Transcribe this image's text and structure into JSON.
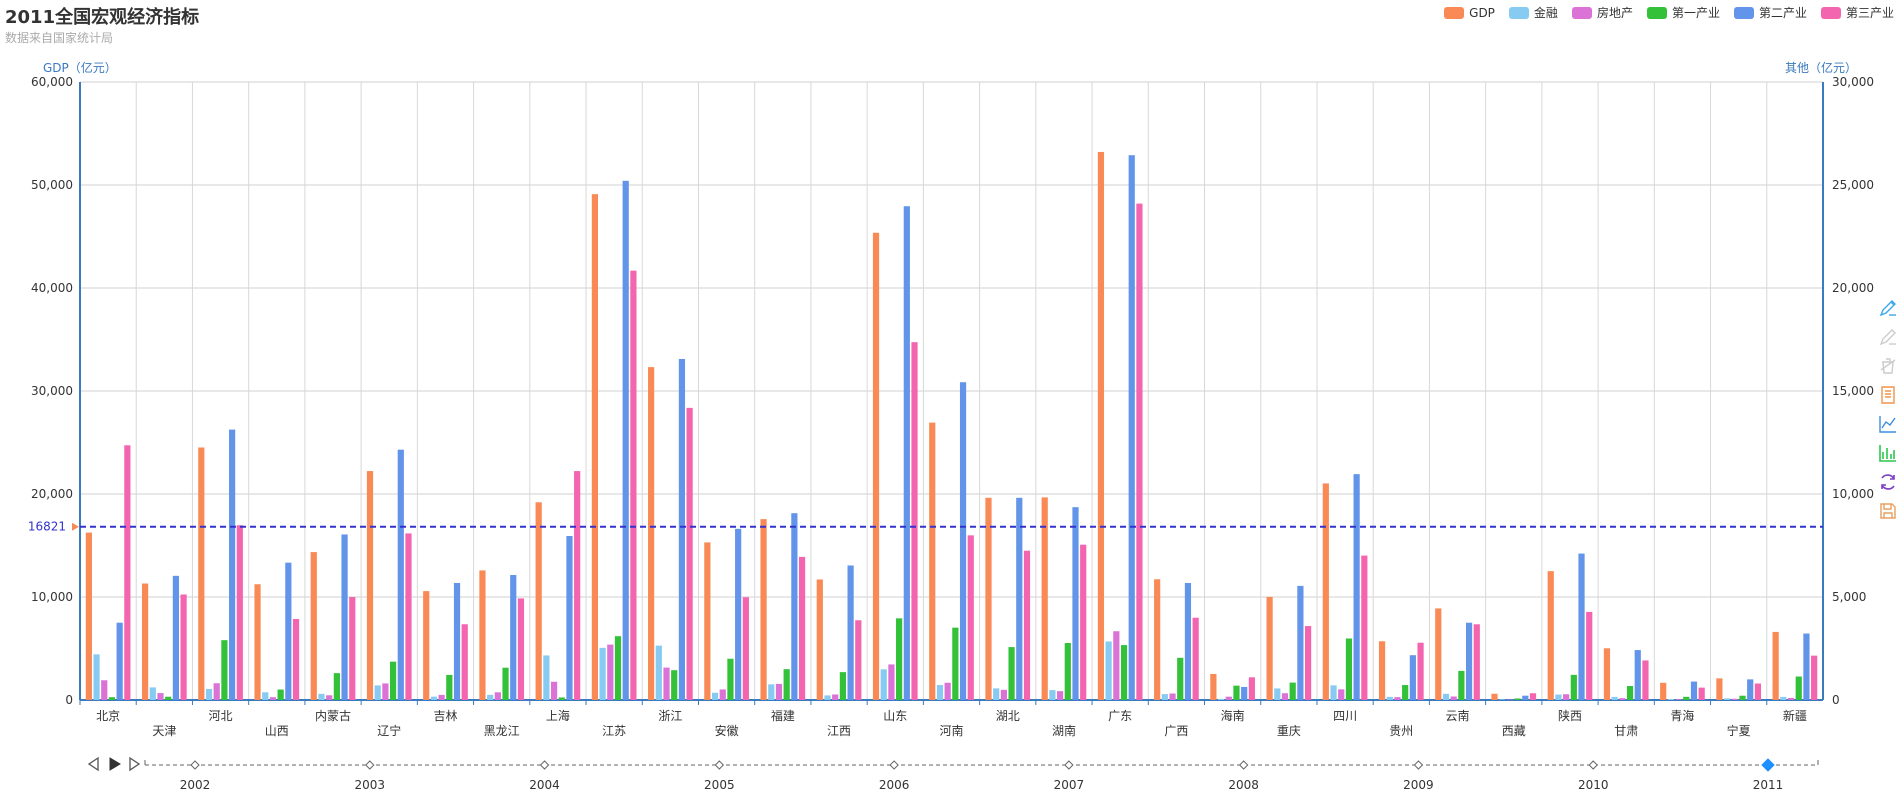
{
  "header": {
    "title": "2011全国宏观经济指标",
    "subtitle": "数据来自国家统计局"
  },
  "legend": [
    {
      "name": "GDP",
      "color": "#f98a55"
    },
    {
      "name": "金融",
      "color": "#88cbf2"
    },
    {
      "name": "房地产",
      "color": "#db73d6"
    },
    {
      "name": "第一产业",
      "color": "#33c13a"
    },
    {
      "name": "第二产业",
      "color": "#6295ea"
    },
    {
      "name": "第三产业",
      "color": "#f465b0"
    }
  ],
  "toolbox": [
    {
      "name": "mark-icon",
      "color": "#3ba8e8"
    },
    {
      "name": "mark-undo-icon",
      "color": "#cccccc"
    },
    {
      "name": "mark-clear-icon",
      "color": "#cccccc"
    },
    {
      "name": "data-view-icon",
      "color": "#f0934a"
    },
    {
      "name": "line-chart-icon",
      "color": "#3b8fe0"
    },
    {
      "name": "bar-chart-icon",
      "color": "#2cc64c"
    },
    {
      "name": "restore-icon",
      "color": "#7b3fc4"
    },
    {
      "name": "save-image-icon",
      "color": "#e8a060"
    }
  ],
  "chart_data": {
    "type": "bar",
    "categories": [
      "北京",
      "天津",
      "河北",
      "山西",
      "内蒙古",
      "辽宁",
      "吉林",
      "黑龙江",
      "上海",
      "江苏",
      "浙江",
      "安徽",
      "福建",
      "江西",
      "山东",
      "河南",
      "湖北",
      "湖南",
      "广东",
      "广西",
      "海南",
      "重庆",
      "四川",
      "贵州",
      "云南",
      "西藏",
      "陕西",
      "甘肃",
      "青海",
      "宁夏",
      "新疆"
    ],
    "left_axis": {
      "label": "GDP（亿元）",
      "min": 0,
      "max": 60000,
      "ticks": [
        0,
        10000,
        20000,
        30000,
        40000,
        50000,
        60000
      ],
      "tick_labels": [
        "0",
        "10,000",
        "20,000",
        "30,000",
        "40,000",
        "50,000",
        "60,000"
      ]
    },
    "right_axis": {
      "label": "其他（亿元）",
      "min": 0,
      "max": 30000,
      "ticks": [
        0,
        5000,
        10000,
        15000,
        20000,
        25000,
        30000
      ],
      "tick_labels": [
        "0",
        "5,000",
        "10,000",
        "15,000",
        "20,000",
        "25,000",
        "30,000"
      ]
    },
    "grid": true,
    "legend_position": "top-right",
    "series": [
      {
        "name": "GDP",
        "axis": "left",
        "color": "#f98a55",
        "values": [
          16252,
          11307,
          24516,
          11238,
          14360,
          22227,
          10569,
          12582,
          19196,
          49110,
          32319,
          15301,
          17560,
          11703,
          45362,
          26931,
          19632,
          19670,
          53210,
          11721,
          2523,
          10011,
          21027,
          5702,
          8893,
          606,
          12512,
          5020,
          1670,
          2102,
          6610
        ]
      },
      {
        "name": "金融",
        "axis": "right",
        "color": "#88cbf2",
        "values": [
          2216,
          612,
          532,
          375,
          300,
          708,
          161,
          250,
          2163,
          2532,
          2640,
          353,
          760,
          223,
          1489,
          727,
          565,
          482,
          2841,
          286,
          55,
          562,
          712,
          152,
          300,
          30,
          264,
          150,
          50,
          80,
          150
        ]
      },
      {
        "name": "房地产",
        "axis": "right",
        "color": "#db73d6",
        "values": [
          959,
          335,
          813,
          135,
          229,
          805,
          246,
          374,
          886,
          2689,
          1574,
          512,
          781,
          268,
          1727,
          837,
          494,
          429,
          3339,
          315,
          160,
          327,
          517,
          140,
          170,
          20,
          280,
          90,
          40,
          60,
          100
        ]
      },
      {
        "name": "第一产业",
        "axis": "right",
        "color": "#33c13a",
        "values": [
          136,
          159,
          2905,
          508,
          1304,
          1861,
          1217,
          1568,
          124,
          3098,
          1448,
          2003,
          1496,
          1353,
          3964,
          3512,
          2569,
          2768,
          2666,
          2048,
          695,
          845,
          2985,
          726,
          1412,
          75,
          1221,
          678,
          155,
          208,
          1139
        ]
      },
      {
        "name": "第二产业",
        "axis": "right",
        "color": "#6295ea",
        "values": [
          3752,
          6027,
          13127,
          6666,
          8038,
          12152,
          5682,
          6067,
          7960,
          25203,
          16555,
          8309,
          9069,
          6530,
          23970,
          15427,
          9815,
          9361,
          26447,
          5681,
          634,
          5540,
          10963,
          2175,
          3752,
          209,
          7109,
          2424,
          895,
          1001,
          3227
        ]
      },
      {
        "name": "第三产业",
        "axis": "right",
        "color": "#f465b0",
        "values": [
          12364,
          5121,
          8484,
          3932,
          5000,
          8087,
          3677,
          4931,
          11113,
          20843,
          14181,
          4988,
          6947,
          3871,
          17370,
          7992,
          7247,
          7539,
          24097,
          3993,
          1101,
          3591,
          7010,
          2780,
          3675,
          328,
          4276,
          1920,
          600,
          800,
          2153
        ]
      }
    ],
    "mark_line": {
      "series": "GDP",
      "value": 16821,
      "label": "16821",
      "color": "#3333cc"
    },
    "timeline": {
      "years": [
        "2002",
        "2003",
        "2004",
        "2005",
        "2006",
        "2007",
        "2008",
        "2009",
        "2010",
        "2011"
      ],
      "current": "2011"
    }
  }
}
